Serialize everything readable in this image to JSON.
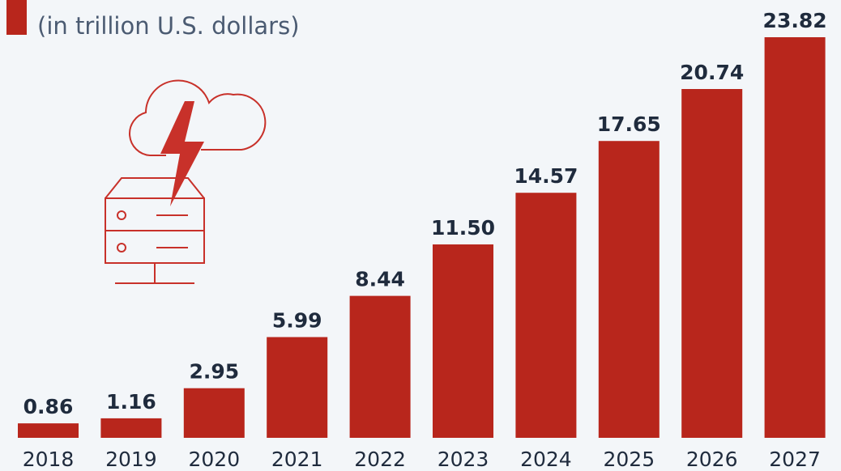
{
  "chart_data": {
    "type": "bar",
    "subtitle": "(in trillion U.S. dollars)",
    "categories": [
      "2018",
      "2019",
      "2020",
      "2021",
      "2022",
      "2023",
      "2024",
      "2025",
      "2026",
      "2027"
    ],
    "values": [
      0.86,
      1.16,
      2.95,
      5.99,
      8.44,
      11.5,
      14.57,
      17.65,
      20.74,
      23.82
    ],
    "value_labels": [
      "0.86",
      "1.16",
      "2.95",
      "5.99",
      "8.44",
      "11.50",
      "14.57",
      "17.65",
      "20.74",
      "23.82"
    ],
    "color": "#b8261c"
  }
}
